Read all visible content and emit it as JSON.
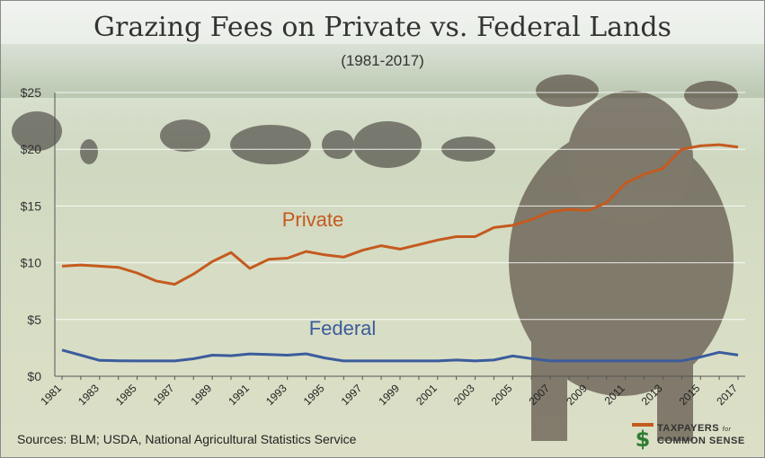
{
  "chart_data": {
    "type": "line",
    "title": "Grazing Fees on Private vs. Federal Lands",
    "subtitle": "(1981-2017)",
    "xlabel": "",
    "ylabel": "",
    "x": [
      1981,
      1982,
      1983,
      1984,
      1985,
      1986,
      1987,
      1988,
      1989,
      1990,
      1991,
      1992,
      1993,
      1994,
      1995,
      1996,
      1997,
      1998,
      1999,
      2000,
      2001,
      2002,
      2003,
      2004,
      2005,
      2006,
      2007,
      2008,
      2009,
      2010,
      2011,
      2012,
      2013,
      2014,
      2015,
      2016,
      2017
    ],
    "x_tick_labels": [
      "1981",
      "1983",
      "1985",
      "1987",
      "1989",
      "1991",
      "1993",
      "1995",
      "1997",
      "1999",
      "2001",
      "2003",
      "2005",
      "2007",
      "2009",
      "2011",
      "2013",
      "2015",
      "2017"
    ],
    "ylim": [
      0,
      25
    ],
    "y_tick_labels": [
      "$0",
      "$5",
      "$10",
      "$15",
      "$20",
      "$25"
    ],
    "y_ticks": [
      0,
      5,
      10,
      15,
      20,
      25
    ],
    "grid": true,
    "series": [
      {
        "name": "Private",
        "color": "#c55a1f",
        "values": [
          9.7,
          9.8,
          9.7,
          9.6,
          9.1,
          8.4,
          8.1,
          9.0,
          10.1,
          10.9,
          9.5,
          10.3,
          10.4,
          11.0,
          10.7,
          10.5,
          11.1,
          11.5,
          11.2,
          11.6,
          12.0,
          12.3,
          12.3,
          13.1,
          13.3,
          13.8,
          14.5,
          14.7,
          14.6,
          15.3,
          17.0,
          17.8,
          18.3,
          20.0,
          20.3,
          20.4,
          20.2
        ]
      },
      {
        "name": "Federal",
        "color": "#3c5c9c",
        "values": [
          2.31,
          1.86,
          1.4,
          1.37,
          1.35,
          1.35,
          1.35,
          1.54,
          1.86,
          1.81,
          1.97,
          1.92,
          1.86,
          1.98,
          1.61,
          1.35,
          1.35,
          1.35,
          1.35,
          1.35,
          1.35,
          1.43,
          1.35,
          1.43,
          1.79,
          1.56,
          1.35,
          1.35,
          1.35,
          1.35,
          1.35,
          1.35,
          1.35,
          1.35,
          1.69,
          2.11,
          1.87
        ]
      }
    ],
    "annotations": [
      {
        "text": "Private",
        "series": "Private"
      },
      {
        "text": "Federal",
        "series": "Federal"
      }
    ]
  },
  "source": "Sources: BLM; USDA, National Agricultural Statistics Service",
  "logo": {
    "line1": "TAXPAYERS",
    "for": "for",
    "line2": "COMMON SENSE",
    "mark": "$",
    "color_accent": "#2e7d32"
  }
}
